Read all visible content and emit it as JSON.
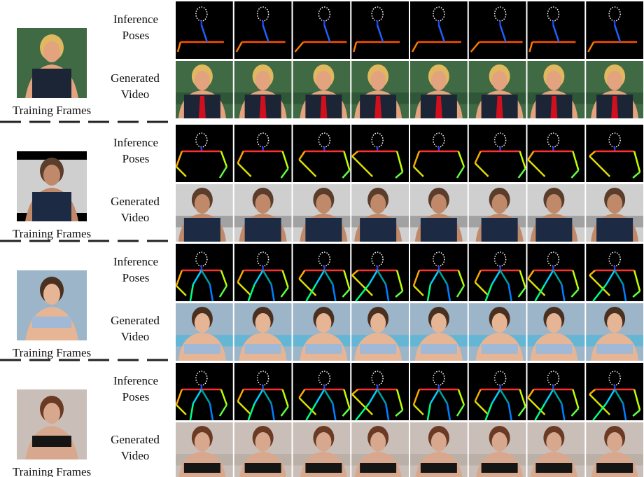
{
  "groups": [
    {
      "training_label": "Training Frames",
      "pose_label": "Inference Poses",
      "video_label": "Generated Video"
    },
    {
      "training_label": "Training Frames",
      "pose_label": "Inference Poses",
      "video_label": "Generated Video"
    },
    {
      "training_label": "Training Frames",
      "pose_label": "Inference Poses",
      "video_label": "Generated Video"
    },
    {
      "training_label": "Training Frames",
      "pose_label": "Inference Poses",
      "video_label": "Generated Video"
    }
  ]
}
